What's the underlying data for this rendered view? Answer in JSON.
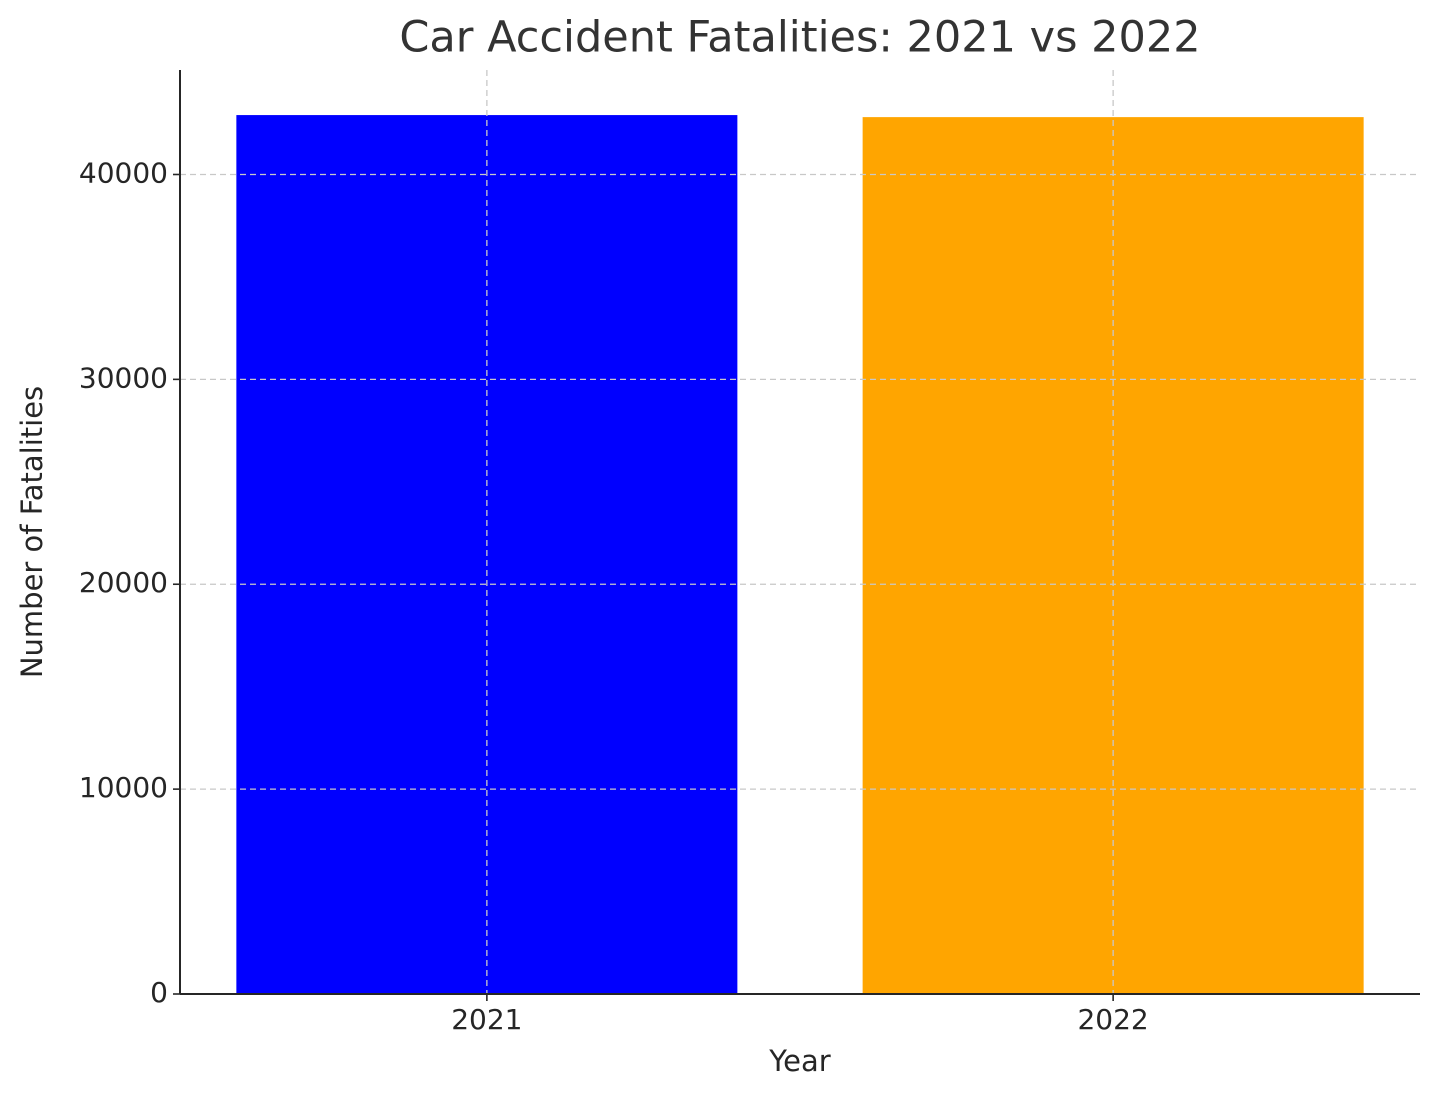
{
  "chart_data": {
    "type": "bar",
    "title": "Car Accident Fatalities: 2021 vs 2022",
    "x_label": "Year",
    "y_label": "Number of Fatalities",
    "categories": [
      "2021",
      "2022"
    ],
    "values": [
      42900,
      42800
    ],
    "colors": [
      "blue",
      "orange"
    ],
    "ylim": [
      0,
      45100
    ],
    "yticks": [
      0,
      10000,
      20000,
      30000,
      40000
    ],
    "grid": true
  }
}
